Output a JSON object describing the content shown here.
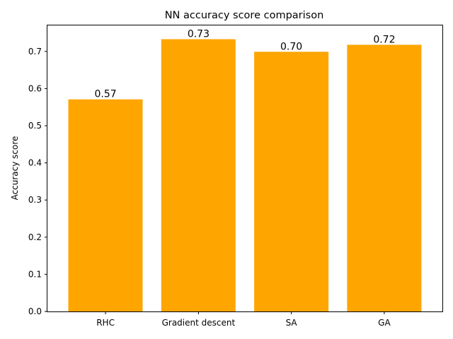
{
  "chart_data": {
    "type": "bar",
    "title": "NN accuracy score comparison",
    "xlabel": "",
    "ylabel": "Accuracy score",
    "categories": [
      "RHC",
      "Gradient descent",
      "SA",
      "GA"
    ],
    "values": [
      0.571,
      0.733,
      0.699,
      0.718
    ],
    "value_labels": [
      "0.57",
      "0.73",
      "0.70",
      "0.72"
    ],
    "ylim": [
      0,
      0.77
    ],
    "yticks": [
      0.0,
      0.1,
      0.2,
      0.3,
      0.4,
      0.5,
      0.6,
      0.7
    ],
    "ytick_labels": [
      "0.0",
      "0.1",
      "0.2",
      "0.3",
      "0.4",
      "0.5",
      "0.6",
      "0.7"
    ],
    "bar_color": "#ffa500",
    "grid": false,
    "legend": "none"
  }
}
